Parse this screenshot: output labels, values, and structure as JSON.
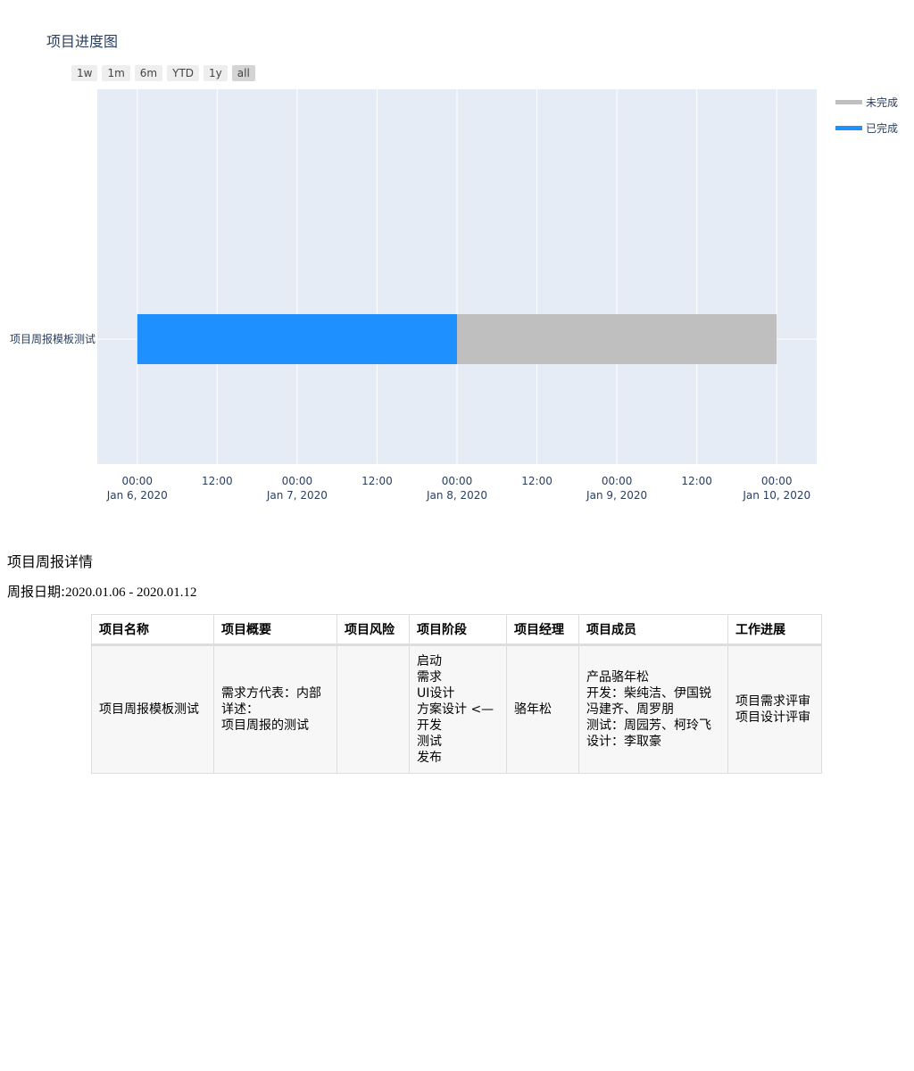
{
  "chart_data": {
    "type": "bar",
    "orientation": "horizontal",
    "title": "项目进度图",
    "range_buttons": [
      "1w",
      "1m",
      "6m",
      "YTD",
      "1y",
      "all"
    ],
    "active_range": "all",
    "categories": [
      "项目周报模板测试"
    ],
    "series": [
      {
        "name": "未完成",
        "color": "#bfbfbf",
        "start": "2020-01-08 00:00",
        "end": "2020-01-10 00:00"
      },
      {
        "name": "已完成",
        "color": "#1e90ff",
        "start": "2020-01-06 00:00",
        "end": "2020-01-08 00:00"
      }
    ],
    "xlim": [
      "2020-01-05 18:00",
      "2020-01-10 06:00"
    ],
    "x_ticks": [
      {
        "time": "00:00",
        "date": "Jan 6, 2020"
      },
      {
        "time": "12:00",
        "date": ""
      },
      {
        "time": "00:00",
        "date": "Jan 7, 2020"
      },
      {
        "time": "12:00",
        "date": ""
      },
      {
        "time": "00:00",
        "date": "Jan 8, 2020"
      },
      {
        "time": "12:00",
        "date": ""
      },
      {
        "time": "00:00",
        "date": "Jan 9, 2020"
      },
      {
        "time": "12:00",
        "date": ""
      },
      {
        "time": "00:00",
        "date": "Jan 10, 2020"
      }
    ],
    "x_tick_hours": [
      0,
      12,
      24,
      36,
      48,
      60,
      72,
      84,
      96
    ],
    "grid": true,
    "legend_position": "top-right",
    "legend": [
      "未完成",
      "已完成"
    ],
    "plot_bg": "#e5ecf6"
  },
  "report": {
    "section_title": "项目周报详情",
    "date_label": "周报日期:",
    "date_value": "2020.01.06 - 2020.01.12",
    "headers": [
      "项目名称",
      "项目概要",
      "项目风险",
      "项目阶段",
      "项目经理",
      "项目成员",
      "工作进展"
    ],
    "row": {
      "name": "项目周报模板测试",
      "summary": [
        "需求方代表：内部",
        "详述：",
        "项目周报的测试"
      ],
      "risk": "",
      "stages": [
        "启动",
        "需求",
        "UI设计",
        "方案设计 <—",
        "开发",
        "测试",
        "发布"
      ],
      "manager": "骆年松",
      "members": [
        "产品骆年松",
        "开发：柴纯洁、伊国锐",
        "冯建齐、周罗朋",
        "测试：周园芳、柯玲飞",
        "设计：李取豪"
      ],
      "progress": [
        "项目需求评审",
        "项目设计评审"
      ]
    }
  }
}
